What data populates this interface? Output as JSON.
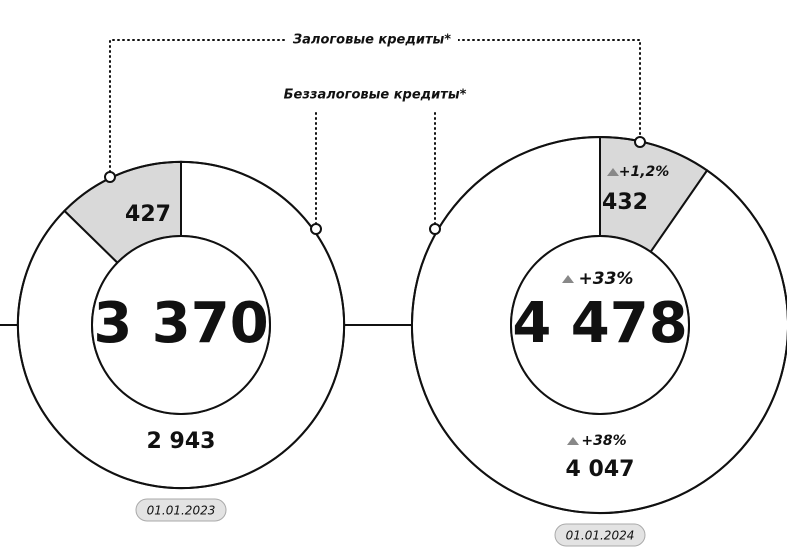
{
  "chart_data": {
    "type": "donut",
    "categories": [
      "Залоговые кредиты*",
      "Беззалоговые кредиты*"
    ],
    "colors": [
      "#d9d9d9",
      "#ffffff"
    ],
    "series": [
      {
        "name": "01.01.2023",
        "direction": "ccw",
        "values": [
          427,
          2943
        ],
        "value_labels": [
          "427",
          "2 943"
        ],
        "total": 3370,
        "total_label": "3 370"
      },
      {
        "name": "01.01.2024",
        "direction": "cw",
        "values": [
          432,
          4047
        ],
        "value_labels": [
          "432",
          "4 047"
        ],
        "total": 4478,
        "total_label": "4 478",
        "change_labels": [
          "+1,2%",
          "+38%"
        ],
        "total_change_label": "+33%"
      }
    ]
  }
}
